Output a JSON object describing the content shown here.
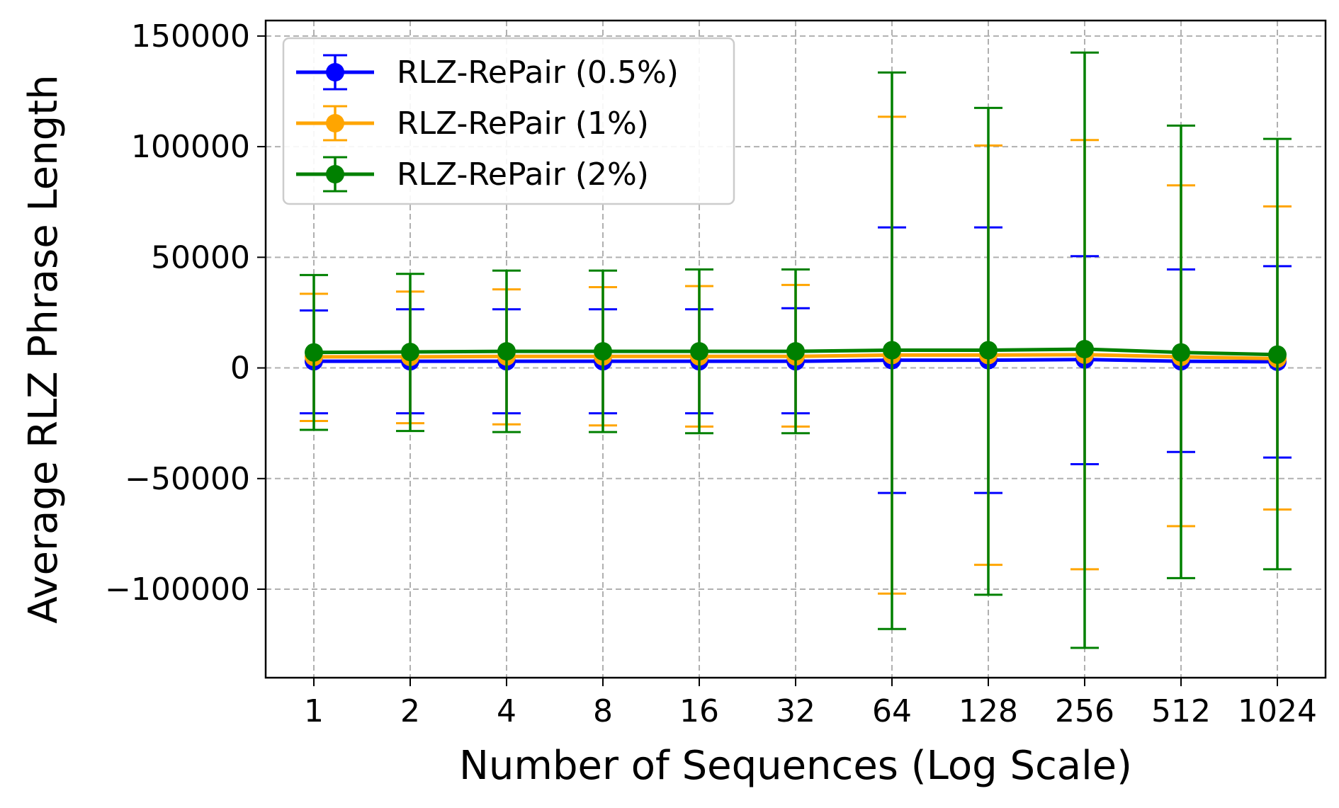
{
  "chart_data": {
    "type": "line",
    "title": "",
    "xlabel": "Number of Sequences (Log Scale)",
    "ylabel": "Average RLZ Phrase Length",
    "x": [
      "1",
      "2",
      "4",
      "8",
      "16",
      "32",
      "64",
      "128",
      "256",
      "512",
      "1024"
    ],
    "x_scale": "log2",
    "ylim": [
      -140000,
      157000
    ],
    "yticks": [
      150000,
      100000,
      50000,
      0,
      -50000,
      -100000
    ],
    "ytick_labels": [
      "150000",
      "100000",
      "50000",
      "0",
      "−50000",
      "−100000"
    ],
    "grid": true,
    "legend_position": "upper-left",
    "series": [
      {
        "name": "RLZ-RePair (0.5%)",
        "color": "#0000ff",
        "values": [
          3000,
          3000,
          3000,
          3000,
          3000,
          3000,
          3500,
          3500,
          3800,
          3000,
          2800
        ],
        "err_low": [
          -20500,
          -20500,
          -20500,
          -20500,
          -20500,
          -20500,
          -56500,
          -56500,
          -43500,
          -38000,
          -40500
        ],
        "err_high": [
          26000,
          26500,
          26500,
          26500,
          26500,
          27000,
          63500,
          63500,
          50500,
          44500,
          46000
        ]
      },
      {
        "name": "RLZ-RePair (1%)",
        "color": "#ffa500",
        "values": [
          5000,
          5000,
          5200,
          5200,
          5200,
          5200,
          5800,
          5800,
          6000,
          5000,
          4200
        ],
        "err_low": [
          -24000,
          -25000,
          -25500,
          -26000,
          -26500,
          -26500,
          -102000,
          -89000,
          -91000,
          -71500,
          -64000
        ],
        "err_high": [
          33500,
          34500,
          35500,
          36500,
          37000,
          37500,
          113500,
          100500,
          103000,
          82500,
          73000
        ]
      },
      {
        "name": "RLZ-RePair (2%)",
        "color": "#008000",
        "values": [
          7000,
          7200,
          7500,
          7500,
          7500,
          7500,
          8000,
          8000,
          8500,
          7000,
          6000
        ],
        "err_low": [
          -28000,
          -28500,
          -29000,
          -29000,
          -29500,
          -29500,
          -118000,
          -102500,
          -126500,
          -95000,
          -91000
        ],
        "err_high": [
          42000,
          42500,
          44000,
          44000,
          44500,
          44500,
          133500,
          117500,
          142500,
          109500,
          103500
        ]
      }
    ]
  }
}
